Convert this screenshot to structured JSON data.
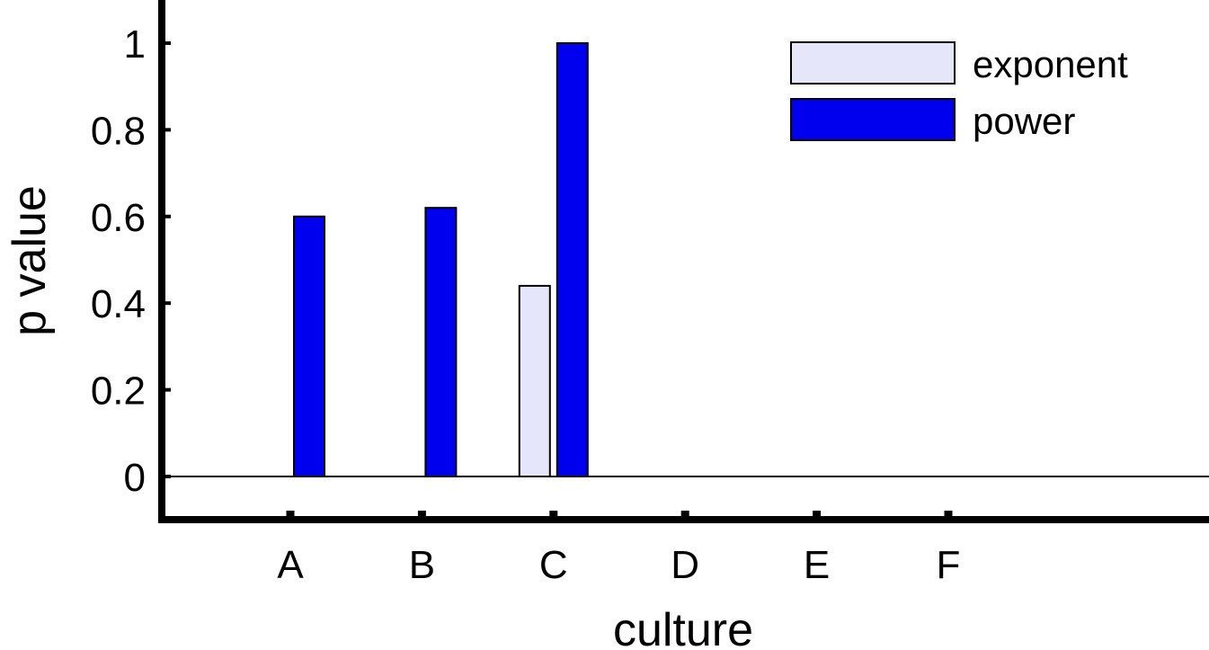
{
  "chart_data": {
    "type": "bar",
    "title": "",
    "xlabel": "culture",
    "ylabel": "p value",
    "categories": [
      "A",
      "B",
      "C",
      "D",
      "E",
      "F"
    ],
    "series": [
      {
        "name": "exponent",
        "values": [
          0,
          0,
          0.44,
          0,
          0,
          0
        ],
        "color": "#e6e6fa"
      },
      {
        "name": "power",
        "values": [
          0.6,
          0.62,
          1.0,
          0,
          0,
          0
        ],
        "color": "#0000ee"
      }
    ],
    "ylim": [
      -0.1,
      1.1
    ],
    "yticks": [
      "0",
      "0.2",
      "0.4",
      "0.6",
      "0.8",
      "1"
    ],
    "ytick_values": [
      0,
      0.2,
      0.4,
      0.6,
      0.8,
      1
    ],
    "grid": false,
    "legend_position": "top-right"
  }
}
